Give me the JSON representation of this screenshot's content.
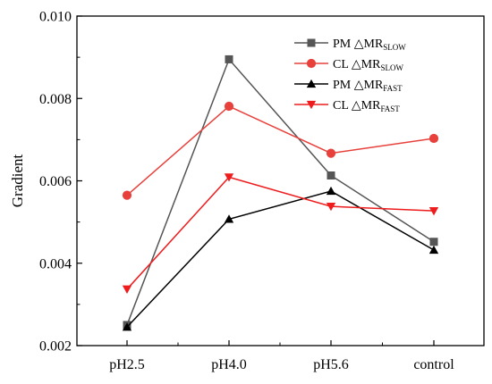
{
  "chart_data": {
    "type": "line",
    "title": "",
    "xlabel": "",
    "ylabel": "Gradient",
    "ylim": [
      0.002,
      0.01
    ],
    "yticks": [
      "0.002",
      "0.004",
      "0.006",
      "0.008",
      "0.010"
    ],
    "categories": [
      "pH2.5",
      "pH4.0",
      "pH5.6",
      "control"
    ],
    "grid": false,
    "legend_position": "top-right",
    "series": [
      {
        "name": "PM △MR",
        "subscript": "SLOW",
        "marker": "square",
        "color": "#555555",
        "values": [
          0.0025,
          0.00895,
          0.00613,
          0.00452
        ]
      },
      {
        "name": "CL △MR",
        "subscript": "SLOW",
        "marker": "circle",
        "color": "#e8413c",
        "values": [
          0.00565,
          0.00781,
          0.00667,
          0.00703
        ]
      },
      {
        "name": "PM △MR",
        "subscript": "FAST",
        "marker": "triangle-up",
        "color": "#000000",
        "values": [
          0.00245,
          0.00507,
          0.00575,
          0.00432
        ]
      },
      {
        "name": "CL △MR",
        "subscript": "FAST",
        "marker": "triangle-down",
        "color": "#ee1c1c",
        "values": [
          0.00337,
          0.00609,
          0.00538,
          0.00527
        ]
      }
    ]
  }
}
